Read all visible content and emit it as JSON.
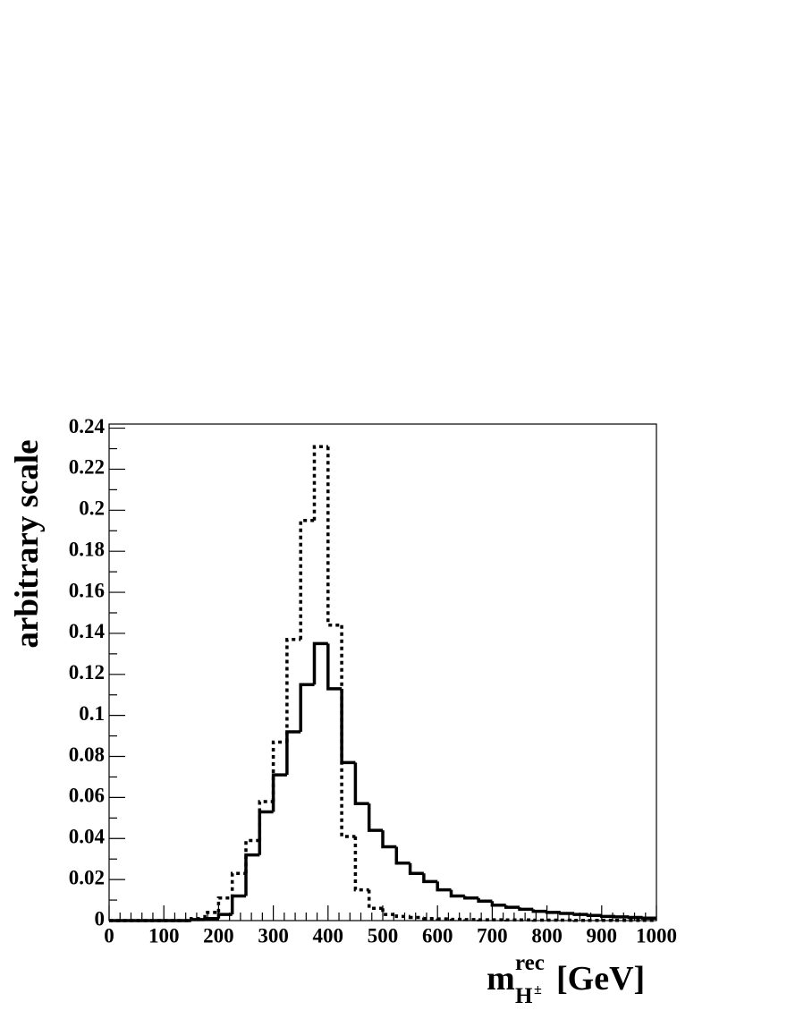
{
  "chart_data": {
    "type": "histogram",
    "ylabel": "arbitrary scale",
    "xlabel": {
      "symbol": "m",
      "sup": "rec",
      "sub": "H",
      "subsup": "±",
      "unit": "[GeV]"
    },
    "bins": [
      0,
      25,
      50,
      75,
      100,
      125,
      150,
      175,
      200,
      225,
      250,
      275,
      300,
      325,
      350,
      375,
      400,
      425,
      450,
      475,
      500,
      525,
      550,
      575,
      600,
      625,
      650,
      675,
      700,
      725,
      750,
      775,
      800,
      825,
      850,
      875,
      900,
      925,
      950,
      975,
      1000
    ],
    "series": [
      {
        "color": "#000000",
        "style": "solid",
        "values": [
          0,
          0,
          0,
          0,
          0,
          0,
          0.0005,
          0.001,
          0.003,
          0.012,
          0.032,
          0.053,
          0.071,
          0.092,
          0.115,
          0.135,
          0.113,
          0.077,
          0.057,
          0.044,
          0.036,
          0.028,
          0.023,
          0.019,
          0.015,
          0.012,
          0.011,
          0.0095,
          0.0075,
          0.0065,
          0.0055,
          0.0045,
          0.004,
          0.0035,
          0.003,
          0.0025,
          0.002,
          0.0018,
          0.0015,
          0.0012
        ]
      },
      {
        "color": "#000000",
        "style": "dashed",
        "values": [
          0,
          0,
          0,
          0,
          0,
          0,
          0.001,
          0.004,
          0.011,
          0.023,
          0.039,
          0.058,
          0.087,
          0.137,
          0.195,
          0.231,
          0.144,
          0.041,
          0.015,
          0.006,
          0.003,
          0.002,
          0.0015,
          0.001,
          0.0008,
          0.0006,
          0.0005,
          0.0004,
          0.0004,
          0.0003,
          0.0003,
          0.0002,
          0.0002,
          0.0002,
          0.0001,
          0.0001,
          0.0001,
          0.0001,
          0.0001,
          0.0001
        ]
      }
    ],
    "xlim": [
      0,
      1000
    ],
    "ylim": [
      0,
      0.242
    ],
    "xticks": [
      0,
      100,
      200,
      300,
      400,
      500,
      600,
      700,
      800,
      900,
      1000
    ],
    "yticks": [
      0,
      0.02,
      0.04,
      0.06,
      0.08,
      0.1,
      0.12,
      0.14,
      0.16,
      0.18,
      0.2,
      0.22,
      0.24
    ],
    "minor_divisions": 5
  }
}
